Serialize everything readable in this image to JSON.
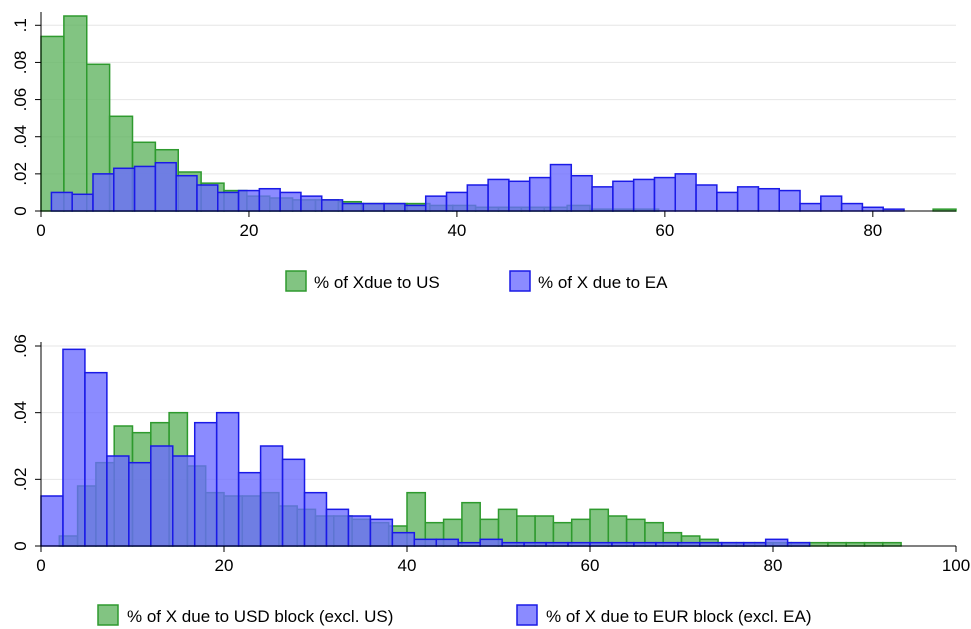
{
  "chart_data": [
    {
      "type": "histogram",
      "xlim": [
        0,
        88
      ],
      "ylim": [
        0,
        0.105
      ],
      "xticks": [
        0,
        20,
        40,
        60,
        80
      ],
      "xtick_labels": [
        "0",
        "20",
        "40",
        "60",
        "80"
      ],
      "yticks": [
        0,
        0.02,
        0.04,
        0.06,
        0.08,
        0.1
      ],
      "ytick_labels": [
        "0",
        ".02",
        ".04",
        ".06",
        ".08",
        ".1"
      ],
      "grid": true,
      "legend_position": "bottom",
      "series": [
        {
          "name": "% of Xdue to US",
          "color": "#5fb35f",
          "bin_start": 0,
          "bin_width": 2.2,
          "values": [
            0.094,
            0.105,
            0.079,
            0.051,
            0.037,
            0.033,
            0.021,
            0.015,
            0.011,
            0.008,
            0.007,
            0.006,
            0.006,
            0.005,
            0.004,
            0.004,
            0.004,
            0.003,
            0.003,
            0.002,
            0.002,
            0.002,
            0.002,
            0.003,
            0.001,
            0.001,
            0.001,
            0,
            0,
            0,
            0,
            0,
            0,
            0,
            0,
            0,
            0,
            0,
            0,
            0.001
          ]
        },
        {
          "name": "% of X due to EA",
          "color": "#6a6aff",
          "bin_start": 1,
          "bin_width": 2,
          "values": [
            0.01,
            0.009,
            0.02,
            0.023,
            0.024,
            0.026,
            0.019,
            0.014,
            0.01,
            0.011,
            0.012,
            0.01,
            0.008,
            0.006,
            0.004,
            0.004,
            0.004,
            0.003,
            0.008,
            0.01,
            0.014,
            0.017,
            0.016,
            0.018,
            0.025,
            0.019,
            0.013,
            0.016,
            0.017,
            0.018,
            0.02,
            0.014,
            0.01,
            0.013,
            0.012,
            0.011,
            0.004,
            0.008,
            0.004,
            0.002,
            0.001
          ]
        }
      ]
    },
    {
      "type": "histogram",
      "xlim": [
        0,
        100
      ],
      "ylim": [
        0,
        0.06
      ],
      "xticks": [
        0,
        20,
        40,
        60,
        80,
        100
      ],
      "xtick_labels": [
        "0",
        "20",
        "40",
        "60",
        "80",
        "100"
      ],
      "yticks": [
        0,
        0.02,
        0.04,
        0.06
      ],
      "ytick_labels": [
        "0",
        ".02",
        ".04",
        ".06"
      ],
      "grid": true,
      "legend_position": "bottom",
      "series": [
        {
          "name": "% of X due to USD block (excl. US)",
          "color": "#5fb35f",
          "bin_start": 0,
          "bin_width": 2,
          "values": [
            0,
            0.003,
            0.018,
            0.025,
            0.036,
            0.034,
            0.037,
            0.04,
            0.024,
            0.016,
            0.015,
            0.015,
            0.016,
            0.012,
            0.011,
            0.009,
            0.009,
            0.008,
            0.007,
            0.006,
            0.016,
            0.007,
            0.008,
            0.013,
            0.008,
            0.011,
            0.009,
            0.009,
            0.007,
            0.008,
            0.011,
            0.009,
            0.008,
            0.007,
            0.004,
            0.003,
            0.002,
            0.001,
            0.001,
            0.001,
            0.001,
            0.001,
            0.001,
            0.001,
            0.001,
            0.001,
            0.001
          ]
        },
        {
          "name": "% of X due to EUR block (excl. EA)",
          "color": "#6a6aff",
          "bin_start": 0,
          "bin_width": 2.4,
          "values": [
            0.015,
            0.059,
            0.052,
            0.027,
            0.025,
            0.03,
            0.027,
            0.037,
            0.04,
            0.022,
            0.03,
            0.026,
            0.016,
            0.011,
            0.009,
            0.008,
            0.004,
            0.002,
            0.002,
            0.001,
            0.002,
            0.001,
            0.001,
            0.001,
            0.001,
            0.001,
            0.001,
            0.001,
            0.001,
            0.001,
            0.001,
            0.001,
            0.001,
            0.002,
            0.001,
            0,
            0,
            0,
            0,
            0
          ]
        }
      ]
    }
  ]
}
